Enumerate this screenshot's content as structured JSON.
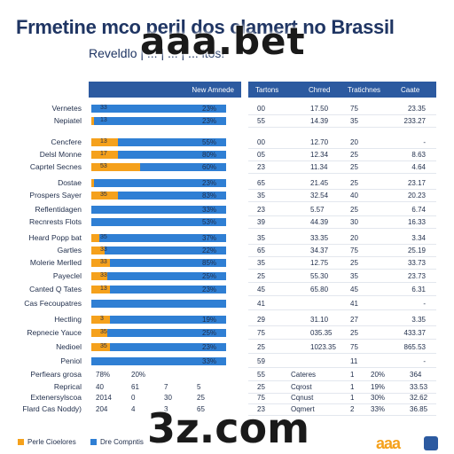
{
  "title": "Frmetine mco peril dos clamert no Brassil",
  "subtitle": "Reveldlo | ...  | ... | ... ltos!",
  "watermark_top": "aaa.bet",
  "watermark_bottom": "3z.com",
  "colors": {
    "primary": "#2f7fd4",
    "secondary": "#f5a11c",
    "header": "#2c5aa0"
  },
  "header_left": "New Amnede",
  "header_right": [
    "Tartons",
    "Chrred",
    "Tratichnes",
    "Caate"
  ],
  "chart_data": {
    "type": "bar",
    "orientation": "horizontal",
    "stacked": true,
    "xlim": [
      0,
      100
    ],
    "series": [
      {
        "name": "Perle Cioelores",
        "color": "#f5a11c"
      },
      {
        "name": "Dre Compntis",
        "color": "#2f7fd4"
      }
    ],
    "rows": [
      {
        "label": "Vernetes",
        "a": "33",
        "orange": 0,
        "pct": "23%",
        "c1": "00",
        "c2": "17.50",
        "c3": "75",
        "c4": "23.35"
      },
      {
        "label": "Nepiatel",
        "a": "13",
        "orange": 2,
        "pct": "23%",
        "c1": "55",
        "c2": "14.39",
        "c3": "35",
        "c4": "233.27"
      },
      {
        "label": "Cencfere",
        "a": "13",
        "orange": 20,
        "pct": "55%",
        "c1": "00",
        "c2": "12.70",
        "c3": "20",
        "c4": "-"
      },
      {
        "label": "Delsl Monne",
        "a": "17",
        "orange": 20,
        "pct": "80%",
        "c1": "05",
        "c2": "12.34",
        "c3": "25",
        "c4": "8.63"
      },
      {
        "label": "Caprtel Secnes",
        "a": "53",
        "orange": 36,
        "pct": "60%",
        "c1": "23",
        "c2": "11.34",
        "c3": "25",
        "c4": "4.64"
      },
      {
        "label": "Dostae",
        "a": "",
        "orange": 2,
        "pct": "23%",
        "c1": "65",
        "c2": "21.45",
        "c3": "25",
        "c4": "23.17"
      },
      {
        "label": "Prospers Sayer",
        "a": "35",
        "orange": 20,
        "pct": "83%",
        "c1": "35",
        "c2": "32.54",
        "c3": "40",
        "c4": "20.23"
      },
      {
        "label": "Reflentidagen",
        "a": "",
        "orange": 0,
        "pct": "33%",
        "c1": "23",
        "c2": "5.57",
        "c3": "25",
        "c4": "6.74"
      },
      {
        "label": "Recnrests Flots",
        "a": "",
        "orange": 0,
        "pct": "53%",
        "c1": "39",
        "c2": "44.39",
        "c3": "30",
        "c4": "16.33"
      },
      {
        "label": "Heard Popp bat",
        "a": "35",
        "orange": 6,
        "pct": "37%",
        "c1": "35",
        "c2": "33.35",
        "c3": "20",
        "c4": "3.34"
      },
      {
        "label": "Gartles",
        "a": "33",
        "orange": 10,
        "pct": "22%",
        "c1": "65",
        "c2": "34.37",
        "c3": "75",
        "c4": "25.19"
      },
      {
        "label": "Molerie Merlled",
        "a": "33",
        "orange": 14,
        "pct": "85%",
        "c1": "35",
        "c2": "12.75",
        "c3": "25",
        "c4": "33.73"
      },
      {
        "label": "Payeclel",
        "a": "33",
        "orange": 12,
        "pct": "25%",
        "c1": "25",
        "c2": "55.30",
        "c3": "35",
        "c4": "23.73"
      },
      {
        "label": "Canted Q Tates",
        "a": "13",
        "orange": 14,
        "pct": "23%",
        "c1": "45",
        "c2": "65.80",
        "c3": "45",
        "c4": "6.31"
      },
      {
        "label": "Cas Fecoupatres",
        "a": "",
        "orange": 0,
        "pct": "",
        "c1": "41",
        "c2": "",
        "c3": "41",
        "c4": "-"
      },
      {
        "label": "Hectling",
        "a": "3",
        "orange": 14,
        "pct": "19%",
        "c1": "29",
        "c2": "31.10",
        "c3": "27",
        "c4": "3.35"
      },
      {
        "label": "Repnecie Yauce",
        "a": "35",
        "orange": 12,
        "pct": "25%",
        "c1": "75",
        "c2": "035.35",
        "c3": "25",
        "c4": "433.37"
      },
      {
        "label": "Nedioel",
        "a": "35",
        "orange": 14,
        "pct": "23%",
        "c1": "25",
        "c2": "1023.35",
        "c3": "75",
        "c4": "865.53"
      },
      {
        "label": "Peniol",
        "a": "",
        "orange": 0,
        "pct": "33%",
        "c1": "59",
        "c2": "",
        "c3": "11",
        "c4": "-"
      }
    ]
  },
  "footer_block": {
    "labels": [
      "Perfiears grosa",
      "Reprical",
      "Extenersylscoa",
      "Flard Cas Noddy)"
    ],
    "a_vals": [
      "78%",
      "40",
      "2014",
      "204"
    ],
    "b_vals": [
      "20%",
      "61",
      "0",
      "4"
    ],
    "c_vals": [
      "",
      "7",
      "30",
      "3"
    ],
    "d_vals": [
      "",
      "5",
      "25",
      "65"
    ],
    "r1": [
      "55",
      "Cateres",
      "1",
      "20%",
      "364"
    ],
    "r2": [
      "25",
      "Cqrost",
      "1",
      "19%",
      "33.53"
    ],
    "r3": [
      "75",
      "Cqnust",
      "1",
      "30%",
      "32.62"
    ],
    "r4": [
      "23",
      "Oqmert",
      "2",
      "33%",
      "36.85"
    ]
  },
  "legend": [
    "Perle Cioelores",
    "Dre Compntis"
  ],
  "logo_text": "aaa"
}
